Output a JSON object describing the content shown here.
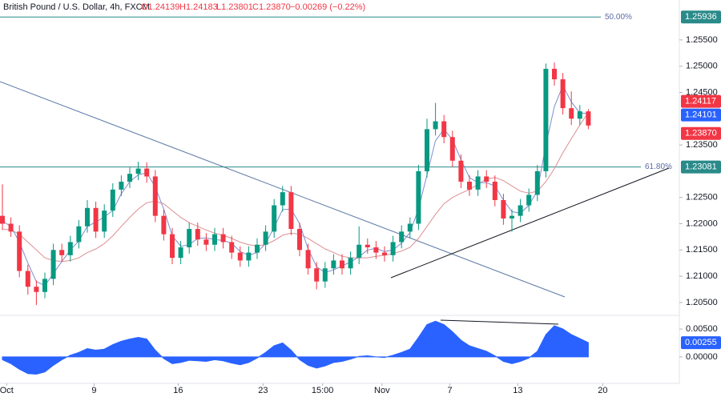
{
  "header": {
    "symbol": "British Pound / U.S. Dollar, 4h, FXCM",
    "ohlc": [
      "O1.24139",
      "H1.24183",
      "L1.23801",
      "C1.23870"
    ],
    "change": "−0.00269 (−0.22%)"
  },
  "chart_data": {
    "type": "candlestick",
    "up_color": "#089981",
    "down_color": "#f23645",
    "candles": [
      [
        1.2215,
        1.2275,
        1.2188,
        1.22
      ],
      [
        1.22,
        1.2212,
        1.2175,
        1.2185
      ],
      [
        1.2185,
        1.2197,
        1.2098,
        1.211
      ],
      [
        1.211,
        1.2122,
        1.2065,
        1.208
      ],
      [
        1.208,
        1.2092,
        1.2045,
        1.207
      ],
      [
        1.207,
        1.2107,
        1.2058,
        1.2095
      ],
      [
        1.2095,
        1.2162,
        1.2083,
        1.215
      ],
      [
        1.215,
        1.2162,
        1.2128,
        1.214
      ],
      [
        1.214,
        1.2177,
        1.2128,
        1.2165
      ],
      [
        1.2165,
        1.2207,
        1.2153,
        1.2195
      ],
      [
        1.2195,
        1.2245,
        1.2183,
        1.223
      ],
      [
        1.223,
        1.2242,
        1.2173,
        1.2185
      ],
      [
        1.2185,
        1.2237,
        1.2173,
        1.2225
      ],
      [
        1.2225,
        1.2277,
        1.2213,
        1.2265
      ],
      [
        1.2265,
        1.2292,
        1.2253,
        1.228
      ],
      [
        1.228,
        1.2307,
        1.2268,
        1.2295
      ],
      [
        1.2295,
        1.2318,
        1.2283,
        1.2305
      ],
      [
        1.2305,
        1.2317,
        1.2278,
        1.229
      ],
      [
        1.229,
        1.2302,
        1.2203,
        1.2215
      ],
      [
        1.2215,
        1.2227,
        1.2168,
        1.218
      ],
      [
        1.218,
        1.2192,
        1.2123,
        1.2135
      ],
      [
        1.2135,
        1.2167,
        1.2123,
        1.2155
      ],
      [
        1.2155,
        1.2202,
        1.2143,
        1.219
      ],
      [
        1.219,
        1.2202,
        1.2158,
        1.217
      ],
      [
        1.217,
        1.2182,
        1.2148,
        1.216
      ],
      [
        1.216,
        1.2192,
        1.2148,
        1.218
      ],
      [
        1.218,
        1.2192,
        1.2153,
        1.2165
      ],
      [
        1.2165,
        1.2177,
        1.2133,
        1.2145
      ],
      [
        1.2145,
        1.2157,
        1.2118,
        1.213
      ],
      [
        1.213,
        1.2157,
        1.2118,
        1.2145
      ],
      [
        1.2145,
        1.2172,
        1.2133,
        1.216
      ],
      [
        1.216,
        1.2197,
        1.2148,
        1.2185
      ],
      [
        1.2185,
        1.2247,
        1.2173,
        1.2235
      ],
      [
        1.2235,
        1.2272,
        1.2223,
        1.226
      ],
      [
        1.226,
        1.2272,
        1.2178,
        1.219
      ],
      [
        1.219,
        1.2202,
        1.2138,
        1.215
      ],
      [
        1.215,
        1.2162,
        1.2103,
        1.2115
      ],
      [
        1.2115,
        1.2127,
        1.2075,
        1.209
      ],
      [
        1.209,
        1.2127,
        1.2078,
        1.2115
      ],
      [
        1.2115,
        1.2142,
        1.2103,
        1.213
      ],
      [
        1.213,
        1.2142,
        1.2103,
        1.2115
      ],
      [
        1.2115,
        1.2147,
        1.2103,
        1.2135
      ],
      [
        1.2135,
        1.2195,
        1.2123,
        1.216
      ],
      [
        1.216,
        1.2172,
        1.2143,
        1.2155
      ],
      [
        1.2155,
        1.2167,
        1.2133,
        1.2145
      ],
      [
        1.2145,
        1.2157,
        1.2128,
        1.214
      ],
      [
        1.214,
        1.2177,
        1.2128,
        1.2165
      ],
      [
        1.2165,
        1.2197,
        1.2153,
        1.2185
      ],
      [
        1.2185,
        1.2212,
        1.2173,
        1.22
      ],
      [
        1.22,
        1.2312,
        1.2188,
        1.23
      ],
      [
        1.23,
        1.24,
        1.2288,
        1.238
      ],
      [
        1.238,
        1.243,
        1.2368,
        1.2395
      ],
      [
        1.2395,
        1.2407,
        1.2353,
        1.2365
      ],
      [
        1.2365,
        1.2377,
        1.2308,
        1.232
      ],
      [
        1.232,
        1.2332,
        1.2268,
        1.228
      ],
      [
        1.228,
        1.2292,
        1.2253,
        1.2265
      ],
      [
        1.2265,
        1.2302,
        1.2253,
        1.229
      ],
      [
        1.229,
        1.2302,
        1.2268,
        1.228
      ],
      [
        1.228,
        1.2292,
        1.2233,
        1.2245
      ],
      [
        1.2245,
        1.2257,
        1.2198,
        1.221
      ],
      [
        1.221,
        1.2227,
        1.2185,
        1.2215
      ],
      [
        1.2215,
        1.2247,
        1.2203,
        1.2235
      ],
      [
        1.2235,
        1.2267,
        1.2223,
        1.2255
      ],
      [
        1.2255,
        1.2312,
        1.2243,
        1.23
      ],
      [
        1.23,
        1.2505,
        1.2288,
        1.2495
      ],
      [
        1.2495,
        1.2507,
        1.2463,
        1.2475
      ],
      [
        1.2475,
        1.2487,
        1.2408,
        1.242
      ],
      [
        1.242,
        1.2452,
        1.2388,
        1.24
      ],
      [
        1.24,
        1.2426,
        1.2388,
        1.2414
      ],
      [
        1.24139,
        1.24183,
        1.23801,
        1.2387
      ]
    ],
    "last_price_label": "1.23870",
    "overlays": [
      {
        "color": "#7d8fcf",
        "tag_color": "#2962ff",
        "values": [
          1.2205,
          1.2195,
          1.2165,
          1.2125,
          1.209,
          1.2082,
          1.2105,
          1.2128,
          1.215,
          1.2167,
          1.2195,
          1.2203,
          1.2213,
          1.2225,
          1.2257,
          1.228,
          1.2293,
          1.2297,
          1.227,
          1.2228,
          1.2177,
          1.2157,
          1.216,
          1.2172,
          1.2173,
          1.217,
          1.2168,
          1.2163,
          1.2147,
          1.214,
          1.2145,
          1.2163,
          1.2193,
          1.2227,
          1.2228,
          1.22,
          1.2152,
          1.2118,
          1.2107,
          1.2112,
          1.212,
          1.2127,
          1.2137,
          1.215,
          1.2153,
          1.2147,
          1.215,
          1.2163,
          1.2183,
          1.2228,
          1.2293,
          1.2358,
          1.238,
          1.236,
          1.2322,
          1.2288,
          1.2278,
          1.2278,
          1.2272,
          1.2245,
          1.2223,
          1.222,
          1.2235,
          1.2263,
          1.235,
          1.2423,
          1.2463,
          1.2432,
          1.2411,
          1.24101
        ]
      },
      {
        "color": "#dc8f93",
        "tag_color": "#f23645",
        "values": [
          1.219,
          1.2188,
          1.218,
          1.2165,
          1.215,
          1.2135,
          1.213,
          1.2128,
          1.213,
          1.2135,
          1.2145,
          1.2152,
          1.2162,
          1.2177,
          1.2195,
          1.2212,
          1.2228,
          1.224,
          1.2243,
          1.2238,
          1.2225,
          1.2212,
          1.2202,
          1.2195,
          1.2188,
          1.2182,
          1.2178,
          1.2172,
          1.2165,
          1.216,
          1.2158,
          1.216,
          1.2168,
          1.2178,
          1.2182,
          1.218,
          1.2172,
          1.2162,
          1.2152,
          1.2145,
          1.2138,
          1.2135,
          1.2135,
          1.2135,
          1.2138,
          1.214,
          1.2143,
          1.2148,
          1.2155,
          1.2172,
          1.2195,
          1.2218,
          1.2238,
          1.225,
          1.2258,
          1.2265,
          1.2275,
          1.2285,
          1.2288,
          1.2282,
          1.2272,
          1.2262,
          1.2258,
          1.2262,
          1.228,
          1.2305,
          1.2335,
          1.2362,
          1.2388,
          1.24117
        ]
      }
    ],
    "levels": [
      {
        "value": 1.25936,
        "label": "50.00%",
        "color": "#2a8a8a"
      },
      {
        "value": 1.23081,
        "label": "61.80%",
        "color": "#2a8a8a"
      }
    ],
    "ylim": [
      1.2027,
      1.2626
    ],
    "yticks": [
      {
        "value": 1.255,
        "label": "1.25500"
      },
      {
        "value": 1.25,
        "label": "1.25000"
      },
      {
        "value": 1.245,
        "label": "1.24500"
      },
      {
        "value": 1.235,
        "label": "1.23500"
      },
      {
        "value": 1.225,
        "label": "1.22500"
      },
      {
        "value": 1.22,
        "label": "1.22000"
      },
      {
        "value": 1.215,
        "label": "1.21500"
      },
      {
        "value": 1.21,
        "label": "1.21000"
      },
      {
        "value": 1.205,
        "label": "1.20500"
      }
    ],
    "xticks": [
      {
        "value": 0.5,
        "label": "Oct"
      },
      {
        "value": 10.8,
        "label": "9"
      },
      {
        "value": 20.7,
        "label": "16"
      },
      {
        "value": 30.7,
        "label": "23"
      },
      {
        "value": 37.7,
        "label": "15:00"
      },
      {
        "value": 44.7,
        "label": "Nov"
      },
      {
        "value": 52.7,
        "label": "7"
      },
      {
        "value": 60.7,
        "label": "13"
      },
      {
        "value": 70.7,
        "label": "20"
      }
    ],
    "oscillator": {
      "color": "#2962ff",
      "y2lim": [
        -0.0046,
        0.0073
      ],
      "y2ticks": [
        {
          "value": 0.005,
          "label": "0.00500"
        },
        {
          "value": 0,
          "label": "0.00000"
        }
      ],
      "values": [
        -0.0005,
        -0.0012,
        -0.0022,
        -0.003,
        -0.0031,
        -0.0027,
        -0.0015,
        -0.0005,
        0.0003,
        0.0008,
        0.0015,
        0.0012,
        0.0014,
        0.0022,
        0.0028,
        0.0032,
        0.0035,
        0.0032,
        0.0012,
        -0.0003,
        -0.0012,
        -0.001,
        -0.0006,
        -0.0007,
        -0.0008,
        -0.0005,
        -0.0007,
        -0.0011,
        -0.0014,
        -0.001,
        -0.0002,
        0.0008,
        0.002,
        0.0025,
        0.0012,
        -0.0005,
        -0.0015,
        -0.002,
        -0.0016,
        -0.001,
        -0.0008,
        -0.0004,
        0.0001,
        0.0002,
        0,
        -0.0001,
        0.0003,
        0.0008,
        0.0014,
        0.0035,
        0.0058,
        0.0064,
        0.0058,
        0.0045,
        0.003,
        0.002,
        0.0015,
        0.001,
        0.0002,
        -0.0008,
        -0.0012,
        -0.0008,
        -0.0002,
        0.001,
        0.004,
        0.0056,
        0.005,
        0.004,
        0.0033,
        0.00255
      ]
    }
  }
}
